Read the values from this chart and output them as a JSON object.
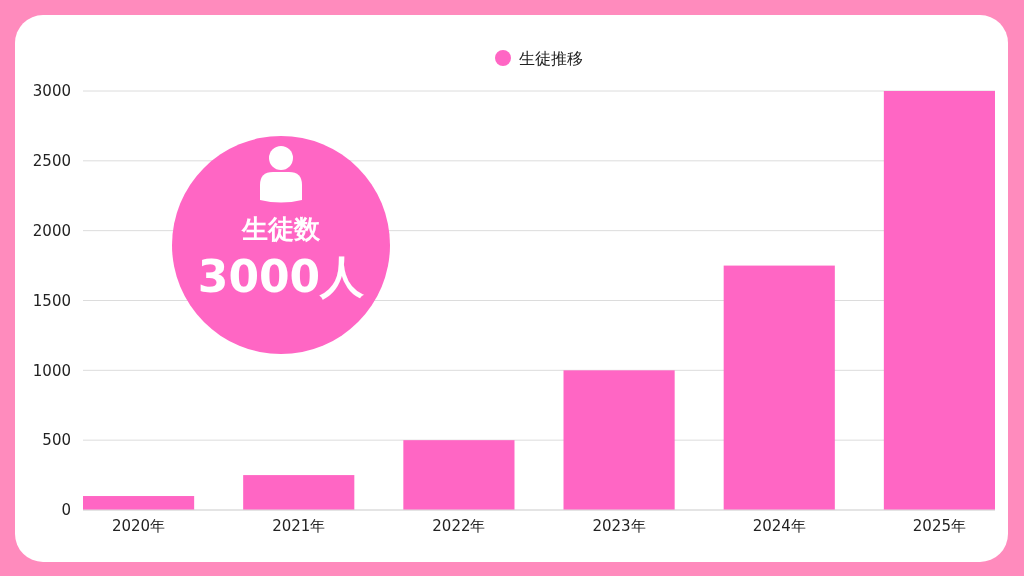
{
  "chart_data": {
    "type": "bar",
    "categories": [
      "2020年",
      "2021年",
      "2022年",
      "2023年",
      "2024年",
      "2025年"
    ],
    "series": [
      {
        "name": "生徒推移",
        "color": "#ff66c4",
        "values": [
          100,
          250,
          500,
          1000,
          1750,
          3000
        ]
      }
    ],
    "ylim": [
      0,
      3000
    ],
    "yticks": [
      0,
      500,
      1000,
      1500,
      2000,
      2500,
      3000
    ],
    "grid": "y",
    "legend": "top",
    "annotations": [
      "生徒数",
      "3000人"
    ]
  }
}
